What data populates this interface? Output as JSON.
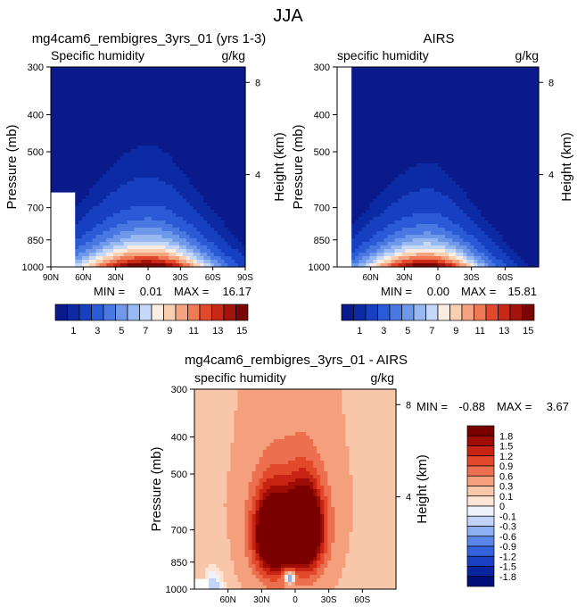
{
  "figure": {
    "title": "JJA"
  },
  "colors": {
    "abs_scale": [
      "#0a1a8a",
      "#0b2aa4",
      "#1640c0",
      "#2a5ad6",
      "#4a78e2",
      "#6e98ea",
      "#98b8f2",
      "#c6d8fa",
      "#fbece2",
      "#f9cfb2",
      "#f5a482",
      "#ee7a56",
      "#e2482c",
      "#c82816",
      "#a2140c",
      "#7a0606"
    ],
    "diff_scale": [
      "#000e7a",
      "#0a24a0",
      "#1a40c4",
      "#3462dc",
      "#5a86ea",
      "#8eaff2",
      "#c2d3f8",
      "#eef3fb",
      "#fde5d6",
      "#f8c6a8",
      "#f4a07c",
      "#ec7050",
      "#e2482a",
      "#c82414",
      "#9e0c06",
      "#7a0000"
    ]
  },
  "chart_data": [
    {
      "type": "heatmap",
      "title": "mg4cam6_rembigres_3yrs_01 (yrs 1-3)",
      "left_label": "Specific humidity",
      "right_label": "g/kg",
      "ylabel": "Pressure (mb)",
      "ylabel_right": "Height (km)",
      "y_ticks": [
        "300",
        "400",
        "500",
        "700",
        "850",
        "1000"
      ],
      "y_tick_values": [
        300,
        400,
        500,
        700,
        850,
        1000
      ],
      "right_ticks": [
        "8",
        "4"
      ],
      "right_tick_values": [
        8,
        4
      ],
      "x_ticks": [
        "90N",
        "60N",
        "30N",
        "0",
        "30S",
        "60S",
        "90S"
      ],
      "x_tick_values": [
        90,
        60,
        30,
        0,
        -30,
        -60,
        -90
      ],
      "xlim": [
        90,
        -90
      ],
      "ylim": [
        300,
        1000
      ],
      "min_label": "MIN =",
      "min_value": "0.01",
      "max_label": "MAX =",
      "max_value": "16.17",
      "field": {
        "peak": 16.17,
        "center_lat": 0,
        "width_lat": 38,
        "scale_height_mb": 150,
        "masked": [
          {
            "lat_from": 68,
            "lat_to": 90,
            "p_from": 640,
            "p_to": 1000
          }
        ]
      },
      "colorbar": {
        "levels": [
          0.5,
          1,
          2,
          3,
          4,
          5,
          6,
          7,
          8,
          9,
          10,
          11,
          12,
          13,
          14,
          15
        ],
        "labels": [
          "1",
          "3",
          "5",
          "7",
          "9",
          "11",
          "13",
          "15"
        ]
      }
    },
    {
      "type": "heatmap",
      "title": "AIRS",
      "left_label": "specific humidity",
      "right_label": "g/kg",
      "ylabel": "Pressure (mb)",
      "ylabel_right": "Height (km)",
      "y_ticks": [
        "300",
        "400",
        "500",
        "700",
        "850",
        "1000"
      ],
      "y_tick_values": [
        300,
        400,
        500,
        700,
        850,
        1000
      ],
      "right_ticks": [
        "8",
        "4"
      ],
      "right_tick_values": [
        8,
        4
      ],
      "x_ticks": [
        "60N",
        "30N",
        "0",
        "30S",
        "60S"
      ],
      "x_tick_values": [
        60,
        30,
        0,
        -30,
        -60
      ],
      "xlim": [
        90,
        -90
      ],
      "ylim": [
        300,
        1000
      ],
      "min_label": "MIN =",
      "min_value": "0.00",
      "max_label": "MAX =",
      "max_value": "15.81",
      "field": {
        "peak": 15.81,
        "center_lat": 10,
        "width_lat": 32,
        "scale_height_mb": 135,
        "masked": [
          {
            "lat_from": 78,
            "lat_to": 90,
            "p_from": 300,
            "p_to": 1000
          }
        ]
      },
      "colorbar": {
        "levels": [
          0.5,
          1,
          2,
          3,
          4,
          5,
          6,
          7,
          8,
          9,
          10,
          11,
          12,
          13,
          14,
          15
        ],
        "labels": [
          "1",
          "3",
          "5",
          "7",
          "9",
          "11",
          "13",
          "15"
        ]
      }
    },
    {
      "type": "heatmap",
      "title": "mg4cam6_rembigres_3yrs_01 - AIRS",
      "left_label": "specific humidity",
      "right_label": "g/kg",
      "ylabel": "Pressure (mb)",
      "ylabel_right": "Height (km)",
      "y_ticks": [
        "300",
        "400",
        "500",
        "700",
        "850",
        "1000"
      ],
      "y_tick_values": [
        300,
        400,
        500,
        700,
        850,
        1000
      ],
      "right_ticks": [
        "8",
        "4"
      ],
      "right_tick_values": [
        8,
        4
      ],
      "x_ticks": [
        "60N",
        "30N",
        "0",
        "30S",
        "60S"
      ],
      "x_tick_values": [
        60,
        30,
        0,
        -30,
        -60
      ],
      "xlim": [
        90,
        -90
      ],
      "ylim": [
        300,
        1000
      ],
      "min_label": "MIN =",
      "min_value": "-0.88",
      "max_label": "MAX =",
      "max_value": "3.67",
      "field": {
        "lobes": [
          {
            "lat": 20,
            "p": 720,
            "amp": 3.0
          },
          {
            "lat": -8,
            "p": 700,
            "amp": 3.2
          }
        ],
        "neg_spot": {
          "lat": 5,
          "p": 930,
          "amp": -0.9
        },
        "masked": [
          {
            "lat_from": 78,
            "lat_to": 90,
            "p_from": 930,
            "p_to": 1000
          }
        ]
      },
      "colorbar": {
        "levels": [
          -1.8,
          -1.5,
          -1.2,
          -0.9,
          -0.6,
          -0.3,
          -0.1,
          0,
          0.1,
          0.3,
          0.6,
          0.9,
          1.2,
          1.5,
          1.8
        ],
        "labels": [
          "1.8",
          "1.5",
          "1.2",
          "0.9",
          "0.6",
          "0.3",
          "0.1",
          "0",
          "-0.1",
          "-0.3",
          "-0.6",
          "-0.9",
          "-1.2",
          "-1.5",
          "-1.8"
        ]
      }
    }
  ]
}
